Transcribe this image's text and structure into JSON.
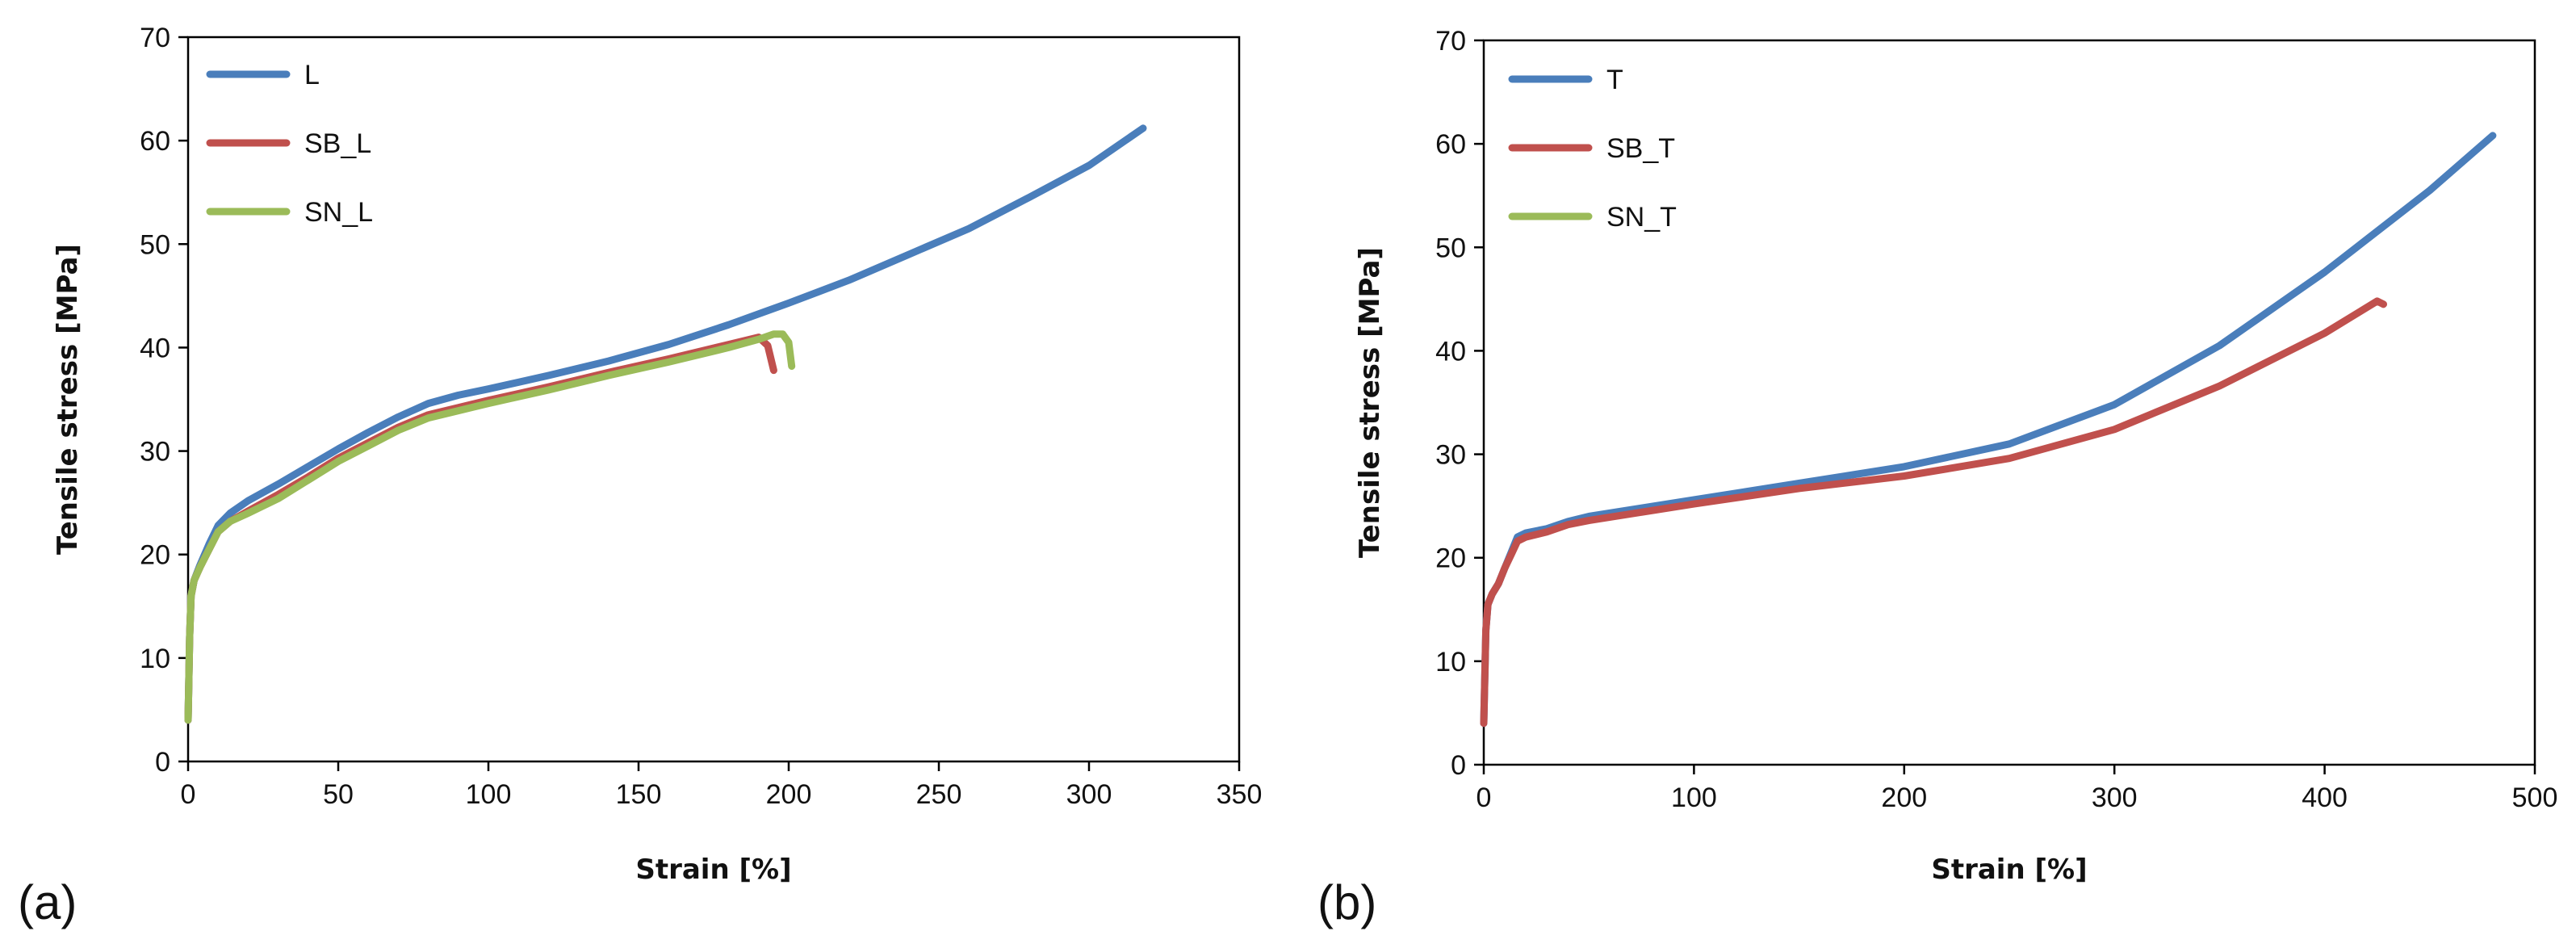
{
  "chart_data": [
    {
      "type": "line",
      "panel_label": "(a)",
      "xlabel": "Strain [%]",
      "ylabel": "Tensile stress [MPa]",
      "xlim": [
        0,
        350
      ],
      "ylim": [
        0,
        70
      ],
      "xticks": [
        "0",
        "50",
        "100",
        "150",
        "200",
        "250",
        "300",
        "350"
      ],
      "yticks": [
        "0",
        "10",
        "20",
        "30",
        "40",
        "50",
        "60",
        "70"
      ],
      "legend_position": "top-left",
      "series": [
        {
          "name": "L",
          "color": "#4a7ebb",
          "x": [
            0,
            0.5,
            1,
            2,
            4,
            7,
            10,
            14,
            20,
            30,
            40,
            50,
            60,
            70,
            80,
            90,
            100,
            120,
            140,
            160,
            180,
            200,
            220,
            240,
            260,
            280,
            300,
            318
          ],
          "y": [
            4,
            12,
            16,
            17.5,
            19,
            21,
            22.8,
            24,
            25.2,
            26.8,
            28.5,
            30.2,
            31.8,
            33.3,
            34.6,
            35.4,
            36,
            37.3,
            38.7,
            40.3,
            42.2,
            44.3,
            46.5,
            49,
            51.5,
            54.5,
            57.6,
            61.2
          ]
        },
        {
          "name": "SB_L",
          "color": "#c0504d",
          "x": [
            0,
            0.5,
            1,
            2,
            4,
            7,
            10,
            14,
            20,
            30,
            40,
            50,
            60,
            70,
            80,
            90,
            100,
            120,
            140,
            160,
            180,
            190,
            193,
            195
          ],
          "y": [
            4,
            12,
            16,
            17.5,
            18.8,
            20.5,
            22.2,
            23.2,
            24.2,
            25.8,
            27.5,
            29.3,
            30.8,
            32.3,
            33.5,
            34.2,
            34.9,
            36.2,
            37.6,
            38.9,
            40.3,
            41,
            40.2,
            37.8
          ]
        },
        {
          "name": "SN_L",
          "color": "#9bbb59",
          "x": [
            0,
            0.5,
            1,
            2,
            4,
            7,
            10,
            14,
            20,
            30,
            40,
            50,
            60,
            70,
            80,
            90,
            100,
            120,
            140,
            160,
            180,
            190,
            195,
            198,
            200,
            201
          ],
          "y": [
            4,
            12,
            16,
            17.5,
            18.8,
            20.5,
            22.2,
            23.2,
            24,
            25.4,
            27.2,
            29,
            30.5,
            32,
            33.2,
            33.9,
            34.6,
            35.9,
            37.3,
            38.6,
            40,
            40.8,
            41.3,
            41.3,
            40.5,
            38.2
          ]
        }
      ]
    },
    {
      "type": "line",
      "panel_label": "(b)",
      "xlabel": "Strain [%]",
      "ylabel": "Tensile stress [MPa]",
      "xlim": [
        0,
        500
      ],
      "ylim": [
        0,
        70
      ],
      "xticks": [
        "0",
        "100",
        "200",
        "300",
        "400",
        "500"
      ],
      "yticks": [
        "0",
        "10",
        "20",
        "30",
        "40",
        "50",
        "60",
        "70"
      ],
      "legend_position": "top-left",
      "series": [
        {
          "name": "T",
          "color": "#4a7ebb",
          "x": [
            0,
            1,
            2,
            4,
            7,
            10,
            13,
            16,
            20,
            30,
            40,
            50,
            75,
            100,
            150,
            200,
            250,
            300,
            350,
            400,
            450,
            480
          ],
          "y": [
            4,
            13,
            15.5,
            16.5,
            17.5,
            19,
            20.5,
            22,
            22.4,
            22.8,
            23.5,
            24,
            24.8,
            25.6,
            27.2,
            28.8,
            31,
            34.8,
            40.5,
            47.6,
            55.5,
            60.8
          ]
        },
        {
          "name": "SB_T",
          "color": "#c0504d",
          "x": [
            0,
            1,
            2,
            4,
            7,
            10,
            13,
            16,
            20,
            30,
            40,
            50,
            75,
            100,
            150,
            200,
            250,
            300,
            350,
            400,
            425,
            428
          ],
          "y": [
            4,
            13,
            15.5,
            16.5,
            17.5,
            19,
            20.3,
            21.6,
            22,
            22.5,
            23.2,
            23.6,
            24.4,
            25.2,
            26.7,
            27.9,
            29.6,
            32.4,
            36.6,
            41.7,
            44.8,
            44.5
          ]
        },
        {
          "name": "SN_T",
          "color": "#9bbb59",
          "x": [],
          "y": []
        }
      ]
    }
  ]
}
